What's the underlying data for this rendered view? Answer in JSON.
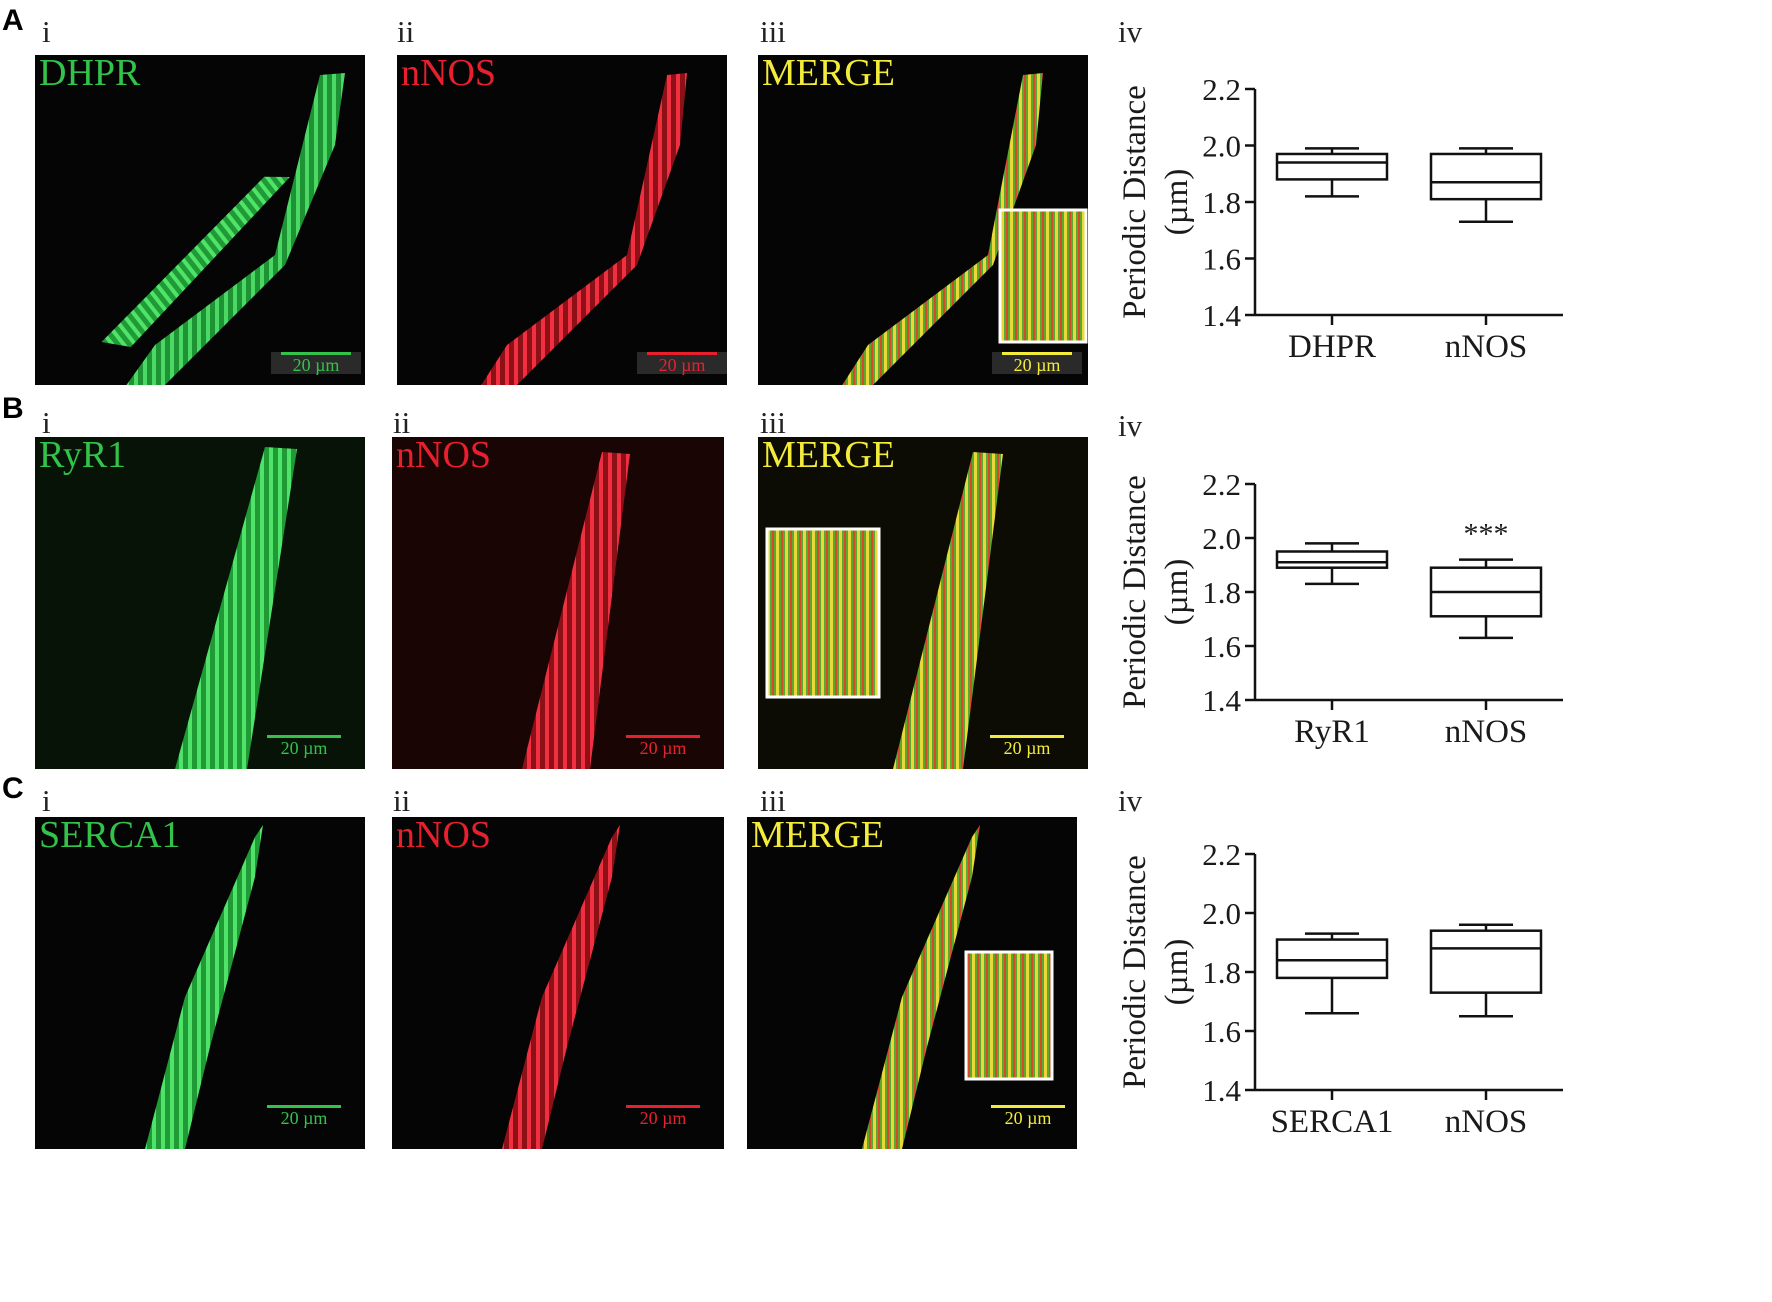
{
  "rows": [
    {
      "letter": "A",
      "subpanels": [
        "i",
        "ii",
        "iii",
        "iv"
      ],
      "channels": [
        "DHPR",
        "nNOS",
        "MERGE"
      ],
      "scale_bars": [
        "20 µm",
        "20 µm",
        "20 µm"
      ]
    },
    {
      "letter": "B",
      "subpanels": [
        "i",
        "ii",
        "iii",
        "iv"
      ],
      "channels": [
        "RyR1",
        "nNOS",
        "MERGE"
      ],
      "scale_bars": [
        "20 µm",
        "20 µm",
        "20 µm"
      ]
    },
    {
      "letter": "C",
      "subpanels": [
        "i",
        "ii",
        "iii",
        "iv"
      ],
      "channels": [
        "SERCA1",
        "nNOS",
        "MERGE"
      ],
      "scale_bars": [
        "20 µm",
        "20 µm",
        "20 µm"
      ]
    }
  ],
  "colors": {
    "green": "#33c24a",
    "red": "#e8202e",
    "yellow": "#f4ec3a",
    "background_dark": "#050505"
  },
  "chart_data": [
    {
      "type": "box",
      "ylabel": "Periodic Distance",
      "ylabel_unit": "(µm)",
      "ylim": [
        1.4,
        2.2
      ],
      "yticks": [
        "1.4",
        "1.6",
        "1.8",
        "2.0",
        "2.2"
      ],
      "categories": [
        "DHPR",
        "nNOS"
      ],
      "boxes": [
        {
          "min": 1.82,
          "q1": 1.88,
          "median": 1.94,
          "q3": 1.97,
          "max": 1.99
        },
        {
          "min": 1.73,
          "q1": 1.81,
          "median": 1.87,
          "q3": 1.97,
          "max": 1.99
        }
      ],
      "annotations": []
    },
    {
      "type": "box",
      "ylabel": "Periodic Distance",
      "ylabel_unit": "(µm)",
      "ylim": [
        1.4,
        2.2
      ],
      "yticks": [
        "1.4",
        "1.6",
        "1.8",
        "2.0",
        "2.2"
      ],
      "categories": [
        "RyR1",
        "nNOS"
      ],
      "boxes": [
        {
          "min": 1.83,
          "q1": 1.89,
          "median": 1.91,
          "q3": 1.95,
          "max": 1.98
        },
        {
          "min": 1.63,
          "q1": 1.71,
          "median": 1.8,
          "q3": 1.89,
          "max": 1.92
        }
      ],
      "annotations": [
        "***"
      ]
    },
    {
      "type": "box",
      "ylabel": "Periodic Distance",
      "ylabel_unit": "(µm)",
      "ylim": [
        1.4,
        2.2
      ],
      "yticks": [
        "1.4",
        "1.6",
        "1.8",
        "2.0",
        "2.2"
      ],
      "categories": [
        "SERCA1",
        "nNOS"
      ],
      "boxes": [
        {
          "min": 1.66,
          "q1": 1.78,
          "median": 1.84,
          "q3": 1.91,
          "max": 1.93
        },
        {
          "min": 1.65,
          "q1": 1.73,
          "median": 1.88,
          "q3": 1.94,
          "max": 1.96
        }
      ],
      "annotations": []
    }
  ]
}
